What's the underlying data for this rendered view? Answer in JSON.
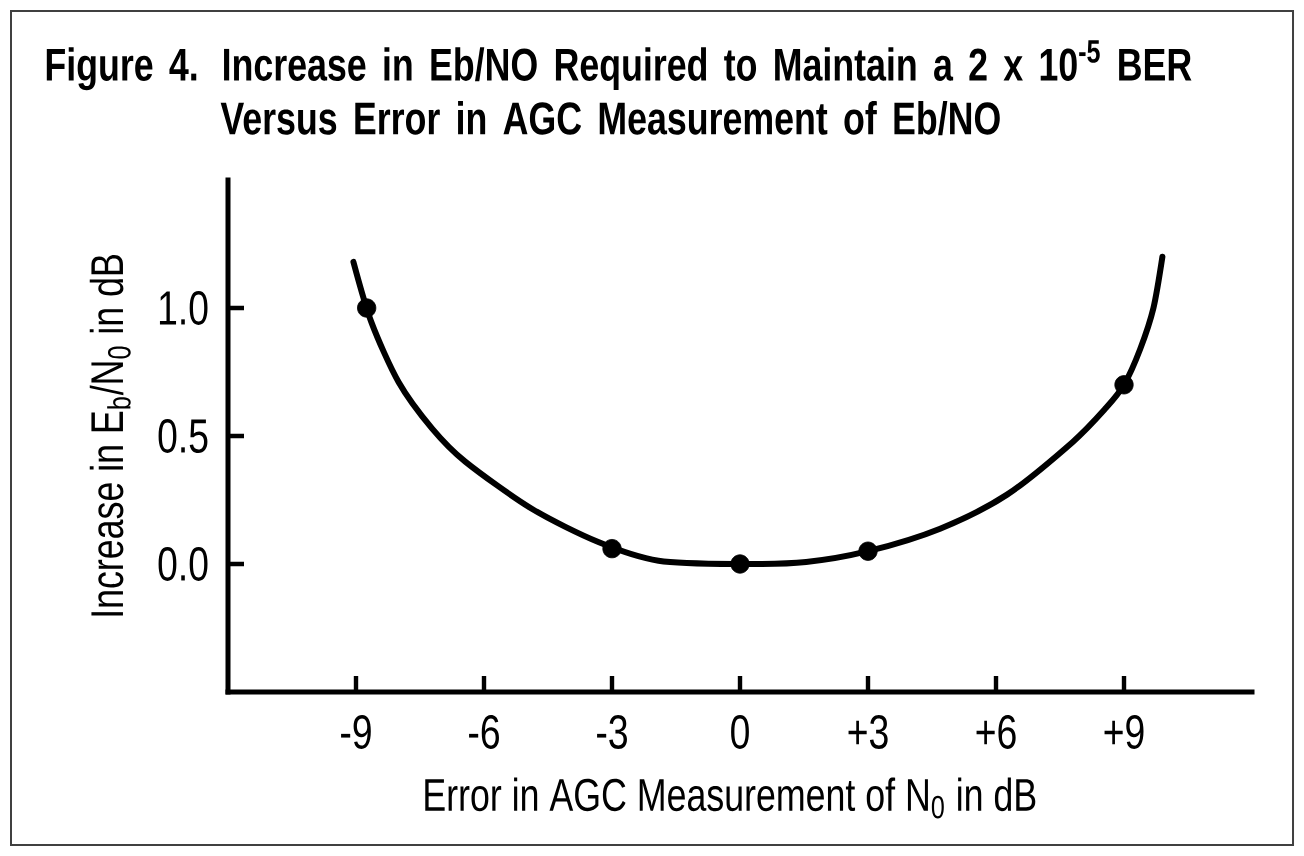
{
  "chart_data": {
    "type": "line",
    "title": "Figure 4.  Increase in Eb/NO Required to Maintain a 2 x 10$^{-5}$ BER Versus Error in AGC Measurement of Eb/NO",
    "xlabel": "Error in AGC Measurement of N$_{0}$ in dB",
    "ylabel": "Increase in E$_{b}$/N$_{0}$ in dB",
    "xlim": [
      -12,
      12
    ],
    "ylim": [
      -0.5,
      1.5
    ],
    "xticks": [
      -9,
      -6,
      -3,
      0,
      {
        "value": 3,
        "label": "+3"
      },
      {
        "value": 6,
        "label": "+6"
      },
      {
        "value": 9,
        "label": "+9"
      }
    ],
    "yticks": [
      {
        "value": 0,
        "label": "0.0"
      },
      0.5,
      {
        "value": 1,
        "label": "1.0"
      }
    ],
    "series": [
      {
        "color": "#000000",
        "x": [
          -9.06,
          -8.64,
          -8.0,
          -7.22,
          -6.44,
          -4.88,
          -3.32,
          -1.91,
          0,
          1.55,
          3,
          4.69,
          6.25,
          7.8,
          8.58,
          9.0,
          9.38,
          9.69,
          9.9
        ],
        "values": [
          1.18,
          0.945,
          0.71,
          0.53,
          0.4,
          0.216,
          0.086,
          0.013,
          0,
          0.008,
          0.05,
          0.138,
          0.27,
          0.477,
          0.61,
          0.7,
          0.84,
          1.0,
          1.2
        ]
      },
      {
        "type": "scatter",
        "color": "#000000",
        "marker": "circle",
        "x": [
          -8.75,
          -3,
          0,
          3,
          9
        ],
        "values": [
          1.0,
          0.06,
          0,
          0.05,
          0.7
        ]
      }
    ]
  }
}
